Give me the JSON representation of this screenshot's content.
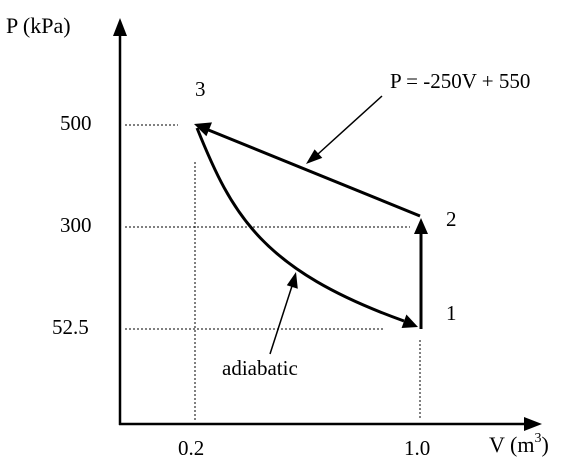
{
  "figure": {
    "axes": {
      "y_label": "P (kPa)",
      "x_label_main": "V (m",
      "x_label_exp": "3",
      "x_label_close": ")"
    },
    "y_ticks": [
      "500",
      "300",
      "52.5"
    ],
    "x_ticks": [
      "0.2",
      "1.0"
    ],
    "points": [
      {
        "label": "1",
        "V": 1.0,
        "P": 52.5
      },
      {
        "label": "2",
        "V": 1.0,
        "P": 300
      },
      {
        "label": "3",
        "V": 0.2,
        "P": 500
      }
    ],
    "processes": [
      {
        "from": "1",
        "to": "2",
        "type": "constant volume"
      },
      {
        "from": "2",
        "to": "3",
        "type": "linear"
      },
      {
        "from": "3",
        "to": "1",
        "type": "adiabatic"
      }
    ],
    "annotations": {
      "line_equation": "P = -250V + 550",
      "adiabatic": "adiabatic"
    },
    "colors": {
      "ink": "#000000",
      "background": "#ffffff"
    }
  }
}
